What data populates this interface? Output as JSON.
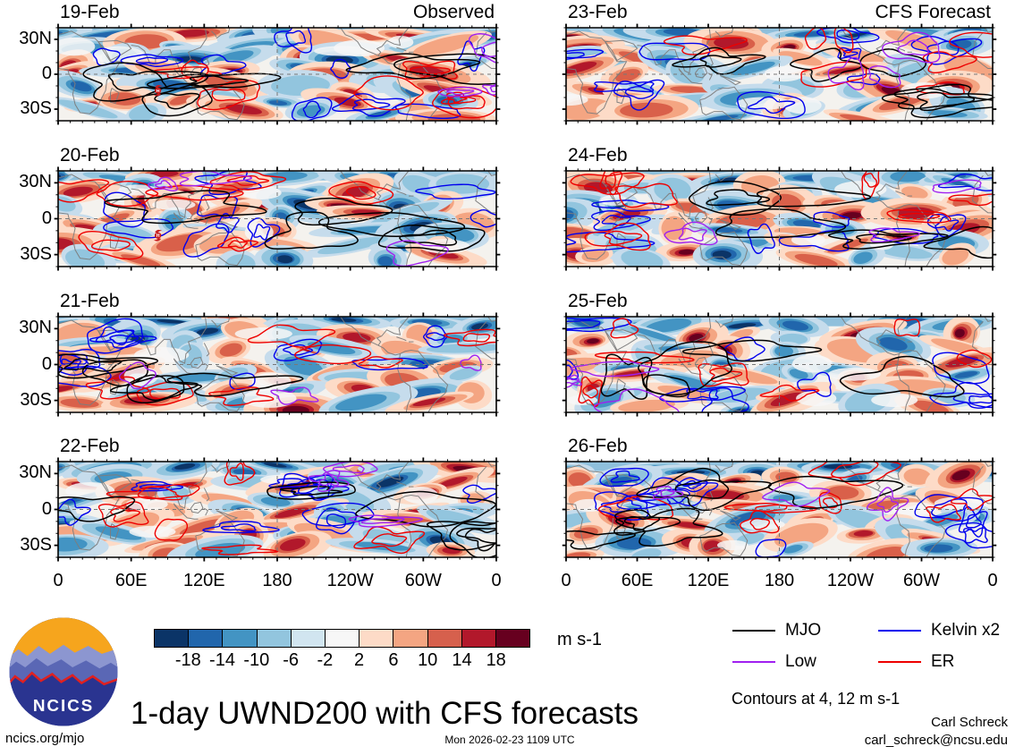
{
  "columns": [
    {
      "header": "Observed",
      "dates": [
        "19-Feb",
        "20-Feb",
        "21-Feb",
        "22-Feb"
      ]
    },
    {
      "header": "CFS Forecast",
      "dates": [
        "23-Feb",
        "24-Feb",
        "25-Feb",
        "26-Feb"
      ]
    }
  ],
  "axes": {
    "x_ticks": [
      "0",
      "60E",
      "120E",
      "180",
      "120W",
      "60W",
      "0"
    ],
    "y_ticks": [
      "30N",
      "0",
      "30S"
    ]
  },
  "colorbar": {
    "levels": [
      "-18",
      "-14",
      "-10",
      "-6",
      "-2",
      "2",
      "6",
      "10",
      "14",
      "18"
    ],
    "colors": [
      "#0b3467",
      "#2166ac",
      "#4394c3",
      "#92c5de",
      "#d1e5f0",
      "#f7f7f7",
      "#fddbc7",
      "#f4a582",
      "#d6604d",
      "#b2182b",
      "#67001f"
    ],
    "units": "m s-1"
  },
  "legend": {
    "items": [
      {
        "label": "MJO",
        "color": "#000000"
      },
      {
        "label": "Low",
        "color": "#a020f0"
      },
      {
        "label": "Kelvin x2",
        "color": "#0000ee"
      },
      {
        "label": "ER",
        "color": "#ee0000"
      }
    ],
    "note": "Contours at 4, 12 m s-1"
  },
  "footer": {
    "logo_text": "NCICS",
    "title": "1-day UWND200 with CFS forecasts",
    "site": "ncics.org/mjo",
    "timestamp": "Mon 2026-02-23 1109 UTC",
    "author": "Carl Schreck",
    "email": "carl_schreck@ncsu.edu"
  },
  "chart_data": {
    "type": "heatmap",
    "title": "1-day UWND200 with CFS forecasts",
    "variable": "UWND200 (200-hPa zonal wind) anomaly shading with wave contours",
    "units": "m s-1",
    "panels": [
      {
        "date": "19-Feb",
        "source": "Observed"
      },
      {
        "date": "20-Feb",
        "source": "Observed"
      },
      {
        "date": "21-Feb",
        "source": "Observed"
      },
      {
        "date": "22-Feb",
        "source": "Observed"
      },
      {
        "date": "23-Feb",
        "source": "CFS Forecast"
      },
      {
        "date": "24-Feb",
        "source": "CFS Forecast"
      },
      {
        "date": "25-Feb",
        "source": "CFS Forecast"
      },
      {
        "date": "26-Feb",
        "source": "CFS Forecast"
      }
    ],
    "x_axis": {
      "tick_labels": [
        "0",
        "60E",
        "120E",
        "180",
        "120W",
        "60W",
        "0"
      ],
      "range_deg_lon": [
        0,
        360
      ]
    },
    "y_axis": {
      "tick_labels": [
        "30N",
        "0",
        "30S"
      ],
      "range_deg_lat": [
        -40,
        40
      ]
    },
    "shading_levels": [
      -18,
      -14,
      -10,
      -6,
      -2,
      2,
      6,
      10,
      14,
      18
    ],
    "shading_colors": [
      "#0b3467",
      "#2166ac",
      "#4394c3",
      "#92c5de",
      "#d1e5f0",
      "#f7f7f7",
      "#fddbc7",
      "#f4a582",
      "#d6604d",
      "#b2182b",
      "#67001f"
    ],
    "contour_series": [
      {
        "name": "MJO",
        "color": "#000000"
      },
      {
        "name": "Low",
        "color": "#a020f0"
      },
      {
        "name": "Kelvin x2",
        "color": "#0000ee"
      },
      {
        "name": "ER",
        "color": "#ee0000"
      }
    ],
    "contour_levels_note": "Contours at 4, 12 m s-1",
    "annotations": [
      {
        "symbol": "tropical-cyclone",
        "panels": [
          "19-Feb",
          "20-Feb"
        ],
        "approx_lon": "80E",
        "approx_lat": "14S"
      }
    ],
    "grid": "dashed equator line and dashed 180-longitude line per panel",
    "legend_position": "bottom-right"
  }
}
